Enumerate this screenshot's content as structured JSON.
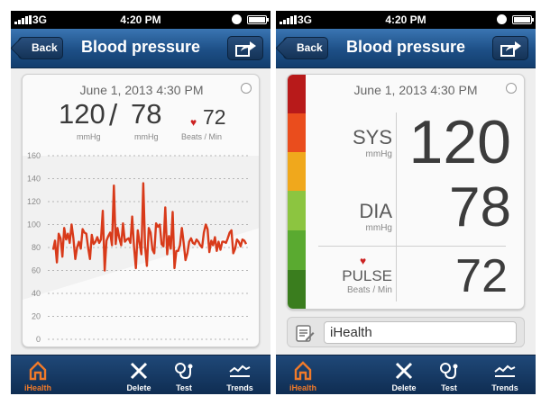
{
  "status_bar": {
    "carrier": "3G",
    "time": "4:20 PM"
  },
  "nav": {
    "back_label": "Back",
    "title": "Blood pressure"
  },
  "reading": {
    "date": "June 1, 2013 4:30 PM",
    "systolic": "120",
    "separator": "/",
    "diastolic": "78",
    "pulse": "72",
    "unit_sys": "mmHg",
    "unit_dia": "mmHg",
    "unit_pulse": "Beats / Min"
  },
  "detail": {
    "sys_label": "SYS",
    "sys_unit": "mmHg",
    "dia_label": "DIA",
    "dia_unit": "mmHg",
    "pulse_label": "PULSE",
    "pulse_unit": "Beats / Min"
  },
  "note": {
    "value": "iHealth"
  },
  "tabs": [
    {
      "label": "iHealth",
      "icon": "home-icon",
      "active": true
    },
    {
      "label": "Delete",
      "icon": "close-icon",
      "active": false
    },
    {
      "label": "Test",
      "icon": "cuff-icon",
      "active": false
    },
    {
      "label": "Trends",
      "icon": "trends-icon",
      "active": false
    }
  ],
  "colors": {
    "accent": "#f07a2a",
    "line": "#d83a1a",
    "nav_top": "#3a75b2",
    "nav_bottom": "#123d6d",
    "bands": [
      "#b81a1a",
      "#ea4d1d",
      "#f0a81c",
      "#8cc540",
      "#5aaa30",
      "#3a7d1e"
    ]
  },
  "chart_data": {
    "type": "line",
    "title": "",
    "xlabel": "",
    "ylabel": "",
    "ylim": [
      0,
      160
    ],
    "yticks": [
      "160",
      "140",
      "120",
      "100",
      "80",
      "60",
      "40",
      "20",
      "0"
    ],
    "grid": true,
    "series": [
      {
        "values": [
          78,
          86,
          67,
          92,
          88,
          72,
          97,
          87,
          92,
          84,
          100,
          88,
          70,
          80,
          85,
          79,
          96,
          93,
          92,
          80,
          70,
          91,
          83,
          85,
          89,
          84,
          87,
          112,
          60,
          86,
          90,
          93,
          82,
          134,
          83,
          97,
          88,
          82,
          101,
          85,
          87,
          88,
          84,
          107,
          80,
          62,
          95,
          84,
          74,
          136,
          81,
          64,
          97,
          93,
          78,
          75,
          101,
          98,
          100,
          83,
          81,
          115,
          74,
          90,
          79,
          111,
          62,
          77,
          77,
          82,
          97,
          84,
          69,
          75,
          85,
          88,
          84,
          83,
          87,
          85,
          82,
          80,
          93,
          100,
          96,
          76,
          86,
          82,
          89,
          77,
          85,
          78,
          85,
          85,
          84,
          88,
          93,
          95,
          75,
          79,
          87,
          85,
          81,
          87,
          86,
          83
        ]
      }
    ]
  }
}
